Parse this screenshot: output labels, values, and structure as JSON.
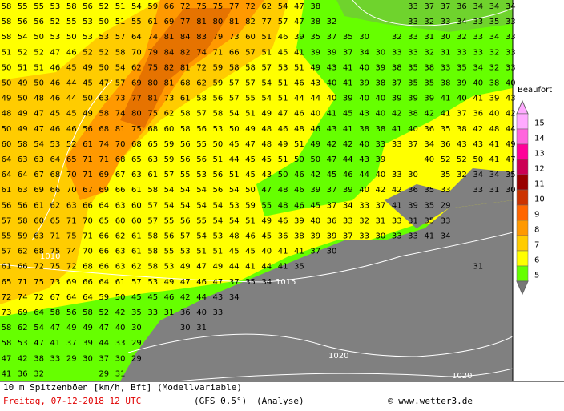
{
  "map": {
    "grid_values": [
      [
        58,
        55,
        55,
        53,
        58,
        56,
        52,
        51,
        54,
        59,
        66,
        72,
        75,
        75,
        77,
        72,
        62,
        54,
        47,
        38,
        null,
        null,
        null,
        null,
        null,
        33,
        37,
        37,
        36,
        34,
        34,
        34
      ],
      [
        58,
        56,
        56,
        52,
        55,
        53,
        50,
        51,
        55,
        61,
        69,
        77,
        81,
        80,
        81,
        82,
        77,
        57,
        47,
        38,
        32,
        null,
        null,
        null,
        null,
        33,
        32,
        33,
        34,
        33,
        35,
        33
      ],
      [
        58,
        54,
        50,
        53,
        50,
        53,
        53,
        57,
        64,
        74,
        81,
        84,
        83,
        79,
        73,
        60,
        51,
        46,
        39,
        35,
        37,
        35,
        30,
        null,
        32,
        33,
        31,
        30,
        32,
        33,
        34,
        33
      ],
      [
        51,
        52,
        52,
        47,
        46,
        52,
        52,
        58,
        70,
        79,
        84,
        82,
        74,
        71,
        66,
        57,
        51,
        45,
        41,
        39,
        39,
        37,
        34,
        30,
        33,
        33,
        32,
        31,
        33,
        33,
        32,
        33
      ],
      [
        50,
        51,
        51,
        46,
        45,
        49,
        50,
        54,
        62,
        75,
        82,
        81,
        72,
        59,
        58,
        58,
        57,
        53,
        51,
        49,
        43,
        41,
        40,
        39,
        38,
        35,
        38,
        33,
        35,
        34,
        32,
        33
      ],
      [
        50,
        49,
        50,
        46,
        44,
        45,
        47,
        57,
        69,
        80,
        81,
        68,
        62,
        59,
        57,
        57,
        54,
        51,
        46,
        43,
        40,
        41,
        39,
        38,
        37,
        35,
        35,
        38,
        39,
        40,
        38,
        40
      ],
      [
        49,
        50,
        48,
        46,
        44,
        50,
        63,
        73,
        77,
        81,
        73,
        61,
        58,
        56,
        57,
        55,
        54,
        51,
        44,
        44,
        40,
        39,
        40,
        40,
        39,
        39,
        39,
        41,
        40,
        41,
        39,
        43
      ],
      [
        48,
        49,
        47,
        45,
        45,
        49,
        58,
        74,
        80,
        75,
        62,
        58,
        57,
        58,
        54,
        51,
        49,
        47,
        46,
        40,
        41,
        45,
        43,
        40,
        42,
        38,
        42,
        41,
        37,
        36,
        40,
        42
      ],
      [
        50,
        49,
        47,
        46,
        46,
        56,
        68,
        81,
        75,
        68,
        60,
        58,
        56,
        53,
        50,
        49,
        48,
        46,
        48,
        46,
        43,
        41,
        38,
        38,
        41,
        40,
        36,
        35,
        38,
        42,
        48,
        44
      ],
      [
        60,
        58,
        54,
        53,
        52,
        61,
        74,
        70,
        68,
        65,
        59,
        56,
        55,
        50,
        45,
        47,
        48,
        49,
        51,
        49,
        42,
        42,
        40,
        33,
        33,
        37,
        34,
        36,
        43,
        43,
        41,
        49
      ],
      [
        64,
        63,
        63,
        64,
        65,
        71,
        71,
        68,
        65,
        63,
        59,
        56,
        56,
        51,
        44,
        45,
        45,
        51,
        50,
        50,
        47,
        44,
        43,
        39,
        null,
        null,
        40,
        52,
        52,
        50,
        41,
        47
      ],
      [
        64,
        64,
        67,
        68,
        70,
        71,
        69,
        67,
        63,
        61,
        57,
        55,
        53,
        56,
        51,
        45,
        43,
        50,
        46,
        42,
        45,
        46,
        44,
        40,
        33,
        30,
        null,
        35,
        32,
        34,
        34,
        35
      ],
      [
        61,
        63,
        69,
        66,
        70,
        67,
        69,
        66,
        61,
        58,
        54,
        54,
        54,
        56,
        54,
        50,
        47,
        48,
        46,
        39,
        37,
        39,
        40,
        42,
        42,
        36,
        35,
        33,
        null,
        33,
        31,
        30
      ],
      [
        56,
        56,
        61,
        62,
        63,
        66,
        64,
        63,
        60,
        57,
        54,
        54,
        54,
        54,
        53,
        59,
        55,
        48,
        46,
        45,
        37,
        34,
        33,
        37,
        41,
        39,
        35,
        29,
        null,
        null,
        null,
        null
      ],
      [
        57,
        58,
        60,
        65,
        71,
        70,
        65,
        60,
        60,
        57,
        55,
        56,
        55,
        54,
        54,
        51,
        49,
        46,
        39,
        40,
        36,
        33,
        32,
        31,
        33,
        31,
        35,
        33,
        null,
        null,
        null,
        null
      ],
      [
        55,
        59,
        63,
        71,
        75,
        71,
        66,
        62,
        61,
        58,
        56,
        57,
        54,
        53,
        48,
        46,
        45,
        36,
        38,
        39,
        39,
        37,
        33,
        30,
        33,
        33,
        41,
        34,
        null,
        null,
        null,
        null
      ],
      [
        57,
        62,
        68,
        75,
        74,
        70,
        66,
        63,
        61,
        58,
        55,
        53,
        51,
        51,
        45,
        45,
        40,
        41,
        41,
        37,
        30,
        null,
        null,
        null,
        null,
        null,
        null,
        null,
        null,
        null,
        null,
        null
      ],
      [
        61,
        66,
        72,
        75,
        72,
        68,
        66,
        63,
        62,
        58,
        53,
        49,
        47,
        49,
        44,
        41,
        44,
        41,
        35,
        null,
        null,
        null,
        null,
        null,
        null,
        null,
        null,
        null,
        null,
        31,
        null,
        null
      ],
      [
        65,
        71,
        75,
        73,
        69,
        66,
        64,
        61,
        57,
        53,
        49,
        47,
        46,
        47,
        37,
        35,
        34,
        null,
        null,
        null,
        null,
        null,
        null,
        null,
        null,
        null,
        null,
        null,
        null,
        null,
        null,
        null
      ],
      [
        72,
        74,
        72,
        67,
        64,
        64,
        59,
        50,
        45,
        45,
        46,
        42,
        44,
        43,
        34,
        null,
        null,
        null,
        null,
        null,
        null,
        null,
        null,
        null,
        null,
        null,
        null,
        null,
        null,
        null,
        null,
        null
      ],
      [
        73,
        69,
        64,
        58,
        56,
        58,
        52,
        42,
        35,
        33,
        31,
        36,
        40,
        33,
        null,
        null,
        null,
        null,
        null,
        null,
        null,
        null,
        null,
        null,
        null,
        null,
        null,
        null,
        null,
        null,
        null,
        null
      ],
      [
        58,
        62,
        54,
        47,
        49,
        49,
        47,
        40,
        30,
        null,
        null,
        30,
        31,
        null,
        null,
        null,
        null,
        null,
        null,
        null,
        null,
        null,
        null,
        null,
        null,
        null,
        null,
        null,
        null,
        null,
        null,
        null
      ],
      [
        58,
        53,
        47,
        41,
        37,
        39,
        44,
        33,
        29,
        null,
        null,
        null,
        null,
        null,
        null,
        null,
        null,
        null,
        null,
        null,
        null,
        null,
        null,
        null,
        null,
        null,
        null,
        null,
        null,
        null,
        null,
        null
      ],
      [
        47,
        42,
        38,
        33,
        29,
        30,
        37,
        30,
        29,
        null,
        null,
        null,
        null,
        null,
        null,
        null,
        null,
        null,
        null,
        null,
        null,
        null,
        null,
        null,
        null,
        null,
        null,
        null,
        null,
        null,
        null,
        null
      ],
      [
        41,
        36,
        32,
        null,
        null,
        null,
        29,
        31,
        null,
        null,
        null,
        null,
        null,
        null,
        null,
        null,
        null,
        null,
        null,
        null,
        null,
        null,
        null,
        null,
        null,
        null,
        null,
        null,
        null,
        null,
        null,
        null
      ]
    ],
    "isobar_labels": [
      "1010",
      "1015",
      "1020",
      "1020"
    ]
  },
  "legend": {
    "title": "Beaufort",
    "levels": [
      {
        "value": 15,
        "color": "#ffaaff"
      },
      {
        "value": 14,
        "color": "#ff66dd"
      },
      {
        "value": 13,
        "color": "#ff0099"
      },
      {
        "value": 12,
        "color": "#cc0055"
      },
      {
        "value": 11,
        "color": "#990000"
      },
      {
        "value": 10,
        "color": "#cc3300"
      },
      {
        "value": 9,
        "color": "#ff6600"
      },
      {
        "value": 8,
        "color": "#ff9900"
      },
      {
        "value": 7,
        "color": "#ffcc00"
      },
      {
        "value": 6,
        "color": "#ffff00"
      },
      {
        "value": 5,
        "color": "#66ff00"
      }
    ]
  },
  "footer": {
    "title": "10 m Spitzenböen [km/h, Bft] (Modellvariable)",
    "date": "Freitag, 07-12-2018  12 UTC",
    "model": "(GFS 0.5°)",
    "kind": "(Analyse)",
    "copyright": "© www.wetter3.de"
  }
}
